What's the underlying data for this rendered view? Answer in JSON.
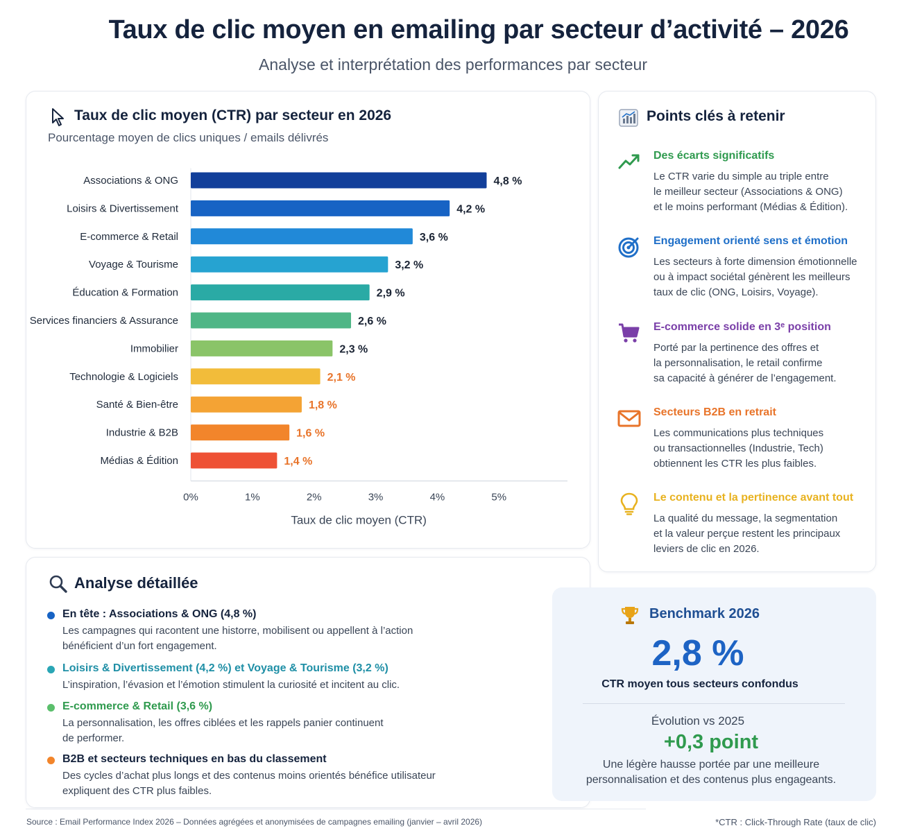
{
  "header": {
    "title": "Taux de clic moyen en emailing par secteur d’activité – 2026",
    "subtitle": "Analyse et interprétation des performances par secteur"
  },
  "colors": {
    "bars": [
      "#123f9a",
      "#1763c4",
      "#2189d8",
      "#26a3d1",
      "#2aaaa5",
      "#4fb686",
      "#8ac468",
      "#f2bc3a",
      "#f4a334",
      "#f2852b",
      "#ee5135"
    ],
    "value_label_dark": "#1b2434",
    "value_label_orange": "#e8742a"
  },
  "chart_data": {
    "type": "bar",
    "orientation": "horizontal",
    "title": "Taux de clic moyen (CTR) par secteur en 2026",
    "subtitle": "Pourcentage moyen de clics uniques / emails délivrés",
    "xlabel": "Taux de clic moyen (CTR)",
    "ylabel": "",
    "xlim": [
      0,
      5.5
    ],
    "x_ticks": [
      0,
      1,
      2,
      3,
      4,
      5
    ],
    "x_tick_labels": [
      "0%",
      "1%",
      "2%",
      "3%",
      "4%",
      "5%"
    ],
    "grid": false,
    "categories": [
      "Associations & ONG",
      "Loisirs & Divertissement",
      "E-commerce & Retail",
      "Voyage & Tourisme",
      "Éducation & Formation",
      "Services financiers & Assurance",
      "Immobilier",
      "Technologie & Logiciels",
      "Santé & Bien-être",
      "Industrie & B2B",
      "Médias & Édition"
    ],
    "values": [
      4.8,
      4.2,
      3.6,
      3.2,
      2.9,
      2.6,
      2.3,
      2.1,
      1.8,
      1.6,
      1.4
    ],
    "value_labels": [
      "4,8 %",
      "4,2 %",
      "3,6 %",
      "3,2 %",
      "2,9 %",
      "2,6 %",
      "2,3 %",
      "2,1 %",
      "1,8 %",
      "1,6 %",
      "1,4 %"
    ]
  },
  "points": {
    "title": "Points clés à retenir",
    "icon": "chart-icon",
    "items": [
      {
        "icon": "trend-up-icon",
        "color": "#2f9a4e",
        "title": "Des écarts significatifs",
        "text": "Le CTR varie du simple au triple entre\nle meilleur secteur (Associations & ONG)\net le moins performant (Médias & Édition)."
      },
      {
        "icon": "target-icon",
        "color": "#1f6fc8",
        "title": "Engagement orienté sens et émotion",
        "text": "Les secteurs à forte dimension émotionnelle\nou à impact sociétal génèrent les meilleurs\ntaux de clic (ONG, Loisirs, Voyage)."
      },
      {
        "icon": "cart-icon",
        "color": "#7a3fa8",
        "title": "E-commerce solide en 3ᵉ position",
        "text": "Porté par la pertinence des offres et\nla personnalisation, le retail confirme\nsa capacité à générer de l’engagement."
      },
      {
        "icon": "mail-icon",
        "color": "#e8742a",
        "title": "Secteurs B2B en retrait",
        "text": "Les communications plus techniques\nou transactionnelles (Industrie, Tech)\nobtiennent les CTR les plus faibles."
      },
      {
        "icon": "lightbulb-icon",
        "color": "#e8b21f",
        "title": "Le contenu et la pertinence avant tout",
        "text": "La qualité du message, la segmentation\net la valeur perçue restent les principaux\nleviers de clic en 2026."
      }
    ]
  },
  "analyse": {
    "title": "Analyse détaillée",
    "items": [
      {
        "color": "#1763c4",
        "head_color": "#15233d",
        "head": "En tête : Associations & ONG (4,8 %)",
        "text": "Les campagnes qui racontent une historre, mobilisent ou appellent à l’action\nbénéficient d’un fort engagement."
      },
      {
        "color": "#2aa6b5",
        "head_color": "#1f8fa6",
        "head": "Loisirs & Divertissement (4,2 %) et Voyage & Tourisme (3,2 %)",
        "text": "L’inspiration, l’évasion et l’émotion stimulent la curiosité et incitent au clic."
      },
      {
        "color": "#5bbf6c",
        "head_color": "#2f9a4e",
        "head": "E-commerce & Retail (3,6 %)",
        "text": "La personnalisation, les offres ciblées et les rappels panier continuent\nde performer."
      },
      {
        "color": "#f2852b",
        "head_color": "#15233d",
        "head": "B2B et secteurs techniques en bas du classement",
        "text": "Des cycles d’achat plus longs et des contenus moins orientés bénéfice utilisateur\nexpliquent des CTR plus faibles."
      }
    ]
  },
  "benchmark": {
    "title": "Benchmark 2026",
    "value": "2,8 %",
    "label": "CTR moyen tous secteurs confondus",
    "evolution_label": "Évolution vs 2025",
    "evolution_value": "+0,3 point",
    "evolution_text": "Une légère hausse portée par une meilleure\npersonnalisation et des contenus plus engageants."
  },
  "footer": {
    "source": "Source : Email Performance Index 2026 – Données agrégées et anonymisées de campagnes emailing (janvier – avril 2026)",
    "note": "*CTR : Click-Through Rate (taux de clic)"
  }
}
